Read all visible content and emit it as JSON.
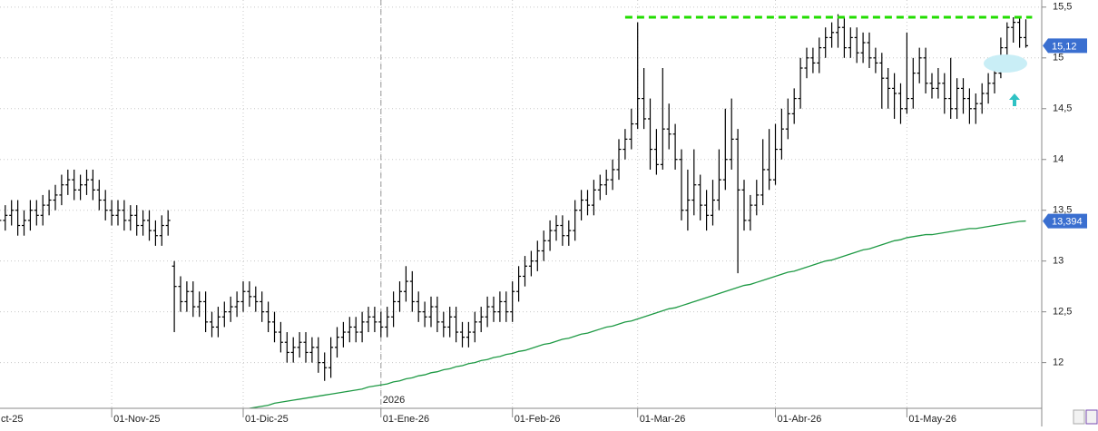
{
  "chart_data": {
    "type": "ohlc",
    "categories": [
      "ct-25",
      null,
      null,
      null,
      null,
      null,
      null,
      null,
      null,
      null,
      null,
      null,
      null,
      null,
      null,
      null,
      null,
      null,
      null,
      "01-Nov-25",
      null,
      null,
      null,
      null,
      null,
      null,
      null,
      null,
      null,
      null,
      null,
      null,
      null,
      null,
      null,
      null,
      null,
      null,
      null,
      null,
      "01-Dic-25",
      null,
      null,
      null,
      null,
      null,
      null,
      null,
      null,
      null,
      null,
      null,
      null,
      null,
      null,
      null,
      null,
      null,
      null,
      null,
      null,
      null,
      "01-Ene-26",
      null,
      null,
      null,
      null,
      null,
      null,
      null,
      null,
      null,
      null,
      null,
      null,
      null,
      null,
      null,
      null,
      null,
      null,
      null,
      null,
      "01-Feb-26",
      null,
      null,
      null,
      null,
      null,
      null,
      null,
      null,
      null,
      null,
      null,
      null,
      null,
      null,
      null,
      null,
      null,
      null,
      null,
      "01-Mar-26",
      null,
      null,
      null,
      null,
      null,
      null,
      null,
      null,
      null,
      null,
      null,
      null,
      null,
      null,
      null,
      null,
      null,
      null,
      null,
      null,
      null,
      "01-Abr-26",
      null,
      null,
      null,
      null,
      null,
      null,
      null,
      null,
      null,
      null,
      null,
      null,
      null,
      null,
      null,
      null,
      null,
      null,
      null,
      null,
      "01-May-26",
      null,
      null,
      null,
      null,
      null,
      null,
      null,
      null,
      null,
      null,
      null,
      null,
      null,
      null,
      null,
      null,
      null,
      null,
      null
    ],
    "open": [
      13.3,
      13.35,
      13.4,
      13.45,
      13.5,
      13.35,
      13.4,
      13.5,
      13.45,
      13.55,
      13.6,
      13.65,
      13.75,
      13.8,
      13.7,
      13.75,
      13.8,
      13.7,
      13.6,
      13.5,
      13.45,
      13.5,
      13.4,
      13.45,
      13.35,
      13.4,
      13.3,
      13.25,
      13.35,
      12.95,
      12.75,
      12.6,
      12.7,
      12.55,
      12.6,
      12.4,
      12.35,
      12.45,
      12.5,
      12.55,
      12.6,
      12.7,
      12.65,
      12.6,
      12.5,
      12.4,
      12.3,
      12.2,
      12.1,
      12.15,
      12.2,
      12.1,
      12.15,
      12.0,
      11.95,
      12.15,
      12.25,
      12.3,
      12.35,
      12.3,
      12.4,
      12.45,
      12.4,
      12.35,
      12.45,
      12.6,
      12.7,
      12.8,
      12.6,
      12.5,
      12.45,
      12.55,
      12.4,
      12.35,
      12.45,
      12.3,
      12.25,
      12.3,
      12.4,
      12.45,
      12.55,
      12.5,
      12.6,
      12.5,
      12.7,
      12.85,
      12.95,
      13.0,
      13.1,
      13.2,
      13.3,
      13.35,
      13.25,
      13.3,
      13.5,
      13.6,
      13.55,
      13.7,
      13.75,
      13.8,
      13.9,
      14.1,
      14.2,
      14.35,
      14.6,
      14.4,
      14.1,
      13.95,
      14.3,
      14.25,
      14.0,
      13.5,
      13.6,
      13.75,
      13.55,
      13.45,
      13.6,
      13.8,
      14.0,
      14.2,
      13.7,
      13.4,
      13.55,
      13.65,
      13.9,
      13.8,
      14.1,
      14.3,
      14.45,
      14.6,
      14.9,
      15.0,
      14.95,
      15.1,
      15.2,
      15.25,
      15.3,
      15.1,
      15.2,
      15.05,
      15.15,
      15.0,
      14.95,
      14.8,
      14.7,
      14.65,
      14.5,
      14.6,
      14.85,
      15.0,
      14.75,
      14.7,
      14.75,
      14.6,
      14.5,
      14.7,
      14.6,
      14.5,
      14.55,
      14.65,
      14.75,
      14.85,
      15.1,
      15.3,
      15.35,
      15.2
    ],
    "high": [
      13.45,
      13.5,
      13.55,
      13.6,
      13.6,
      13.5,
      13.6,
      13.6,
      13.65,
      13.7,
      13.75,
      13.85,
      13.9,
      13.9,
      13.85,
      13.9,
      13.9,
      13.8,
      13.7,
      13.6,
      13.6,
      13.6,
      13.55,
      13.55,
      13.5,
      13.5,
      13.4,
      13.45,
      13.5,
      13.0,
      12.85,
      12.8,
      12.8,
      12.7,
      12.7,
      12.5,
      12.55,
      12.6,
      12.65,
      12.7,
      12.8,
      12.8,
      12.75,
      12.7,
      12.6,
      12.5,
      12.4,
      12.3,
      12.25,
      12.3,
      12.3,
      12.25,
      12.25,
      12.1,
      12.25,
      12.35,
      12.4,
      12.45,
      12.45,
      12.5,
      12.55,
      12.55,
      12.5,
      12.55,
      12.7,
      12.8,
      12.95,
      12.9,
      12.7,
      12.6,
      12.65,
      12.65,
      12.5,
      12.55,
      12.55,
      12.4,
      12.4,
      12.5,
      12.55,
      12.65,
      12.65,
      12.7,
      12.7,
      12.8,
      12.95,
      13.05,
      13.1,
      13.2,
      13.3,
      13.4,
      13.45,
      13.45,
      13.4,
      13.6,
      13.7,
      13.7,
      13.8,
      13.85,
      13.9,
      14.0,
      14.2,
      14.3,
      14.5,
      15.35,
      14.9,
      14.6,
      14.3,
      14.9,
      14.55,
      14.35,
      14.1,
      13.9,
      14.1,
      13.85,
      13.7,
      13.8,
      14.1,
      14.5,
      14.6,
      14.3,
      13.8,
      13.65,
      13.8,
      14.2,
      14.3,
      14.35,
      14.5,
      14.6,
      14.7,
      15.0,
      15.1,
      15.1,
      15.2,
      15.3,
      15.35,
      15.43,
      15.4,
      15.3,
      15.3,
      15.25,
      15.25,
      15.1,
      15.05,
      14.9,
      14.85,
      14.75,
      15.25,
      15.0,
      15.1,
      15.1,
      14.85,
      14.9,
      14.85,
      15.0,
      14.8,
      14.8,
      14.7,
      14.65,
      14.75,
      14.85,
      14.95,
      15.2,
      15.35,
      15.4,
      15.4,
      15.38
    ],
    "low": [
      13.2,
      13.25,
      13.3,
      13.35,
      13.25,
      13.25,
      13.3,
      13.35,
      13.35,
      13.45,
      13.5,
      13.55,
      13.65,
      13.6,
      13.6,
      13.65,
      13.6,
      13.5,
      13.4,
      13.35,
      13.35,
      13.3,
      13.3,
      13.25,
      13.25,
      13.2,
      13.15,
      13.15,
      13.25,
      12.3,
      12.5,
      12.5,
      12.45,
      12.45,
      12.3,
      12.25,
      12.25,
      12.35,
      12.4,
      12.45,
      12.5,
      12.55,
      12.5,
      12.4,
      12.3,
      12.2,
      12.1,
      12.0,
      12.0,
      12.05,
      12.0,
      12.0,
      11.9,
      11.82,
      11.85,
      12.05,
      12.15,
      12.2,
      12.2,
      12.2,
      12.3,
      12.3,
      12.25,
      12.25,
      12.35,
      12.5,
      12.6,
      12.5,
      12.4,
      12.35,
      12.35,
      12.3,
      12.25,
      12.25,
      12.2,
      12.15,
      12.15,
      12.2,
      12.3,
      12.35,
      12.4,
      12.4,
      12.4,
      12.4,
      12.6,
      12.75,
      12.85,
      12.9,
      13.0,
      13.1,
      13.2,
      13.15,
      13.15,
      13.2,
      13.4,
      13.45,
      13.45,
      13.6,
      13.65,
      13.7,
      13.8,
      14.0,
      14.1,
      14.3,
      14.3,
      13.9,
      13.85,
      13.9,
      14.1,
      13.9,
      13.4,
      13.3,
      13.45,
      13.4,
      13.3,
      13.35,
      13.5,
      13.7,
      13.9,
      12.88,
      13.3,
      13.3,
      13.45,
      13.55,
      13.7,
      13.75,
      14.0,
      14.2,
      14.35,
      14.5,
      14.8,
      14.85,
      14.85,
      15.0,
      15.1,
      15.1,
      15.0,
      15.0,
      14.95,
      14.95,
      14.9,
      14.85,
      14.5,
      14.5,
      14.4,
      14.35,
      14.45,
      14.5,
      14.75,
      14.65,
      14.6,
      14.6,
      14.45,
      14.4,
      14.4,
      14.45,
      14.35,
      14.35,
      14.45,
      14.55,
      14.65,
      14.8,
      15.0,
      15.15,
      15.1,
      15.1
    ],
    "close": [
      13.35,
      13.4,
      13.45,
      13.5,
      13.35,
      13.4,
      13.5,
      13.45,
      13.55,
      13.6,
      13.65,
      13.75,
      13.8,
      13.7,
      13.75,
      13.8,
      13.7,
      13.6,
      13.5,
      13.45,
      13.5,
      13.4,
      13.45,
      13.35,
      13.4,
      13.3,
      13.25,
      13.35,
      13.4,
      12.75,
      12.6,
      12.7,
      12.55,
      12.6,
      12.4,
      12.35,
      12.45,
      12.5,
      12.55,
      12.6,
      12.7,
      12.65,
      12.6,
      12.5,
      12.4,
      12.3,
      12.2,
      12.1,
      12.15,
      12.2,
      12.1,
      12.15,
      12.0,
      11.95,
      12.15,
      12.25,
      12.3,
      12.35,
      12.3,
      12.4,
      12.45,
      12.4,
      12.35,
      12.45,
      12.6,
      12.7,
      12.8,
      12.6,
      12.5,
      12.45,
      12.55,
      12.4,
      12.35,
      12.45,
      12.3,
      12.25,
      12.3,
      12.4,
      12.45,
      12.55,
      12.5,
      12.6,
      12.5,
      12.7,
      12.85,
      12.95,
      13.0,
      13.1,
      13.2,
      13.3,
      13.35,
      13.25,
      13.3,
      13.5,
      13.6,
      13.55,
      13.7,
      13.75,
      13.8,
      13.9,
      14.1,
      14.2,
      14.35,
      14.6,
      14.4,
      14.1,
      13.95,
      14.3,
      14.25,
      14.0,
      13.5,
      13.6,
      13.75,
      13.55,
      13.45,
      13.6,
      13.8,
      14.0,
      14.2,
      13.7,
      13.4,
      13.55,
      13.65,
      13.9,
      13.8,
      14.1,
      14.3,
      14.45,
      14.6,
      14.9,
      15.0,
      14.95,
      15.1,
      15.2,
      15.25,
      15.3,
      15.1,
      15.2,
      15.05,
      15.15,
      15.0,
      14.95,
      14.8,
      14.7,
      14.65,
      14.5,
      14.6,
      14.85,
      15.0,
      14.75,
      14.7,
      14.75,
      14.6,
      14.5,
      14.7,
      14.6,
      14.5,
      14.55,
      14.65,
      14.75,
      14.85,
      15.1,
      15.3,
      15.35,
      15.2,
      15.12
    ],
    "color": "#000000",
    "last_label": "15,12",
    "label_color": "#3a6fd0",
    "overlays": [
      {
        "type": "line",
        "color": "#1f9a45",
        "last_label": "13,394",
        "values": [
          null,
          null,
          null,
          null,
          null,
          null,
          null,
          null,
          null,
          null,
          null,
          null,
          null,
          null,
          null,
          null,
          null,
          null,
          null,
          null,
          null,
          null,
          null,
          null,
          null,
          null,
          null,
          null,
          null,
          null,
          null,
          null,
          null,
          null,
          null,
          null,
          null,
          null,
          null,
          null,
          null,
          11.55,
          11.56,
          11.57,
          11.58,
          11.6,
          11.61,
          11.62,
          11.63,
          11.64,
          11.65,
          11.66,
          11.67,
          11.68,
          11.69,
          11.7,
          11.71,
          11.72,
          11.73,
          11.74,
          11.76,
          11.77,
          11.78,
          11.79,
          11.81,
          11.82,
          11.84,
          11.85,
          11.87,
          11.88,
          11.9,
          11.91,
          11.93,
          11.94,
          11.96,
          11.97,
          11.99,
          12.0,
          12.02,
          12.03,
          12.05,
          12.06,
          12.08,
          12.09,
          12.11,
          12.12,
          12.14,
          12.16,
          12.18,
          12.19,
          12.21,
          12.23,
          12.24,
          12.26,
          12.28,
          12.29,
          12.31,
          12.33,
          12.35,
          12.36,
          12.38,
          12.4,
          12.41,
          12.43,
          12.45,
          12.47,
          12.49,
          12.51,
          12.53,
          12.54,
          12.56,
          12.58,
          12.6,
          12.62,
          12.64,
          12.66,
          12.68,
          12.7,
          12.72,
          12.74,
          12.76,
          12.77,
          12.79,
          12.81,
          12.83,
          12.85,
          12.87,
          12.89,
          12.9,
          12.92,
          12.94,
          12.96,
          12.98,
          13.0,
          13.01,
          13.03,
          13.05,
          13.07,
          13.09,
          13.11,
          13.12,
          13.14,
          13.16,
          13.18,
          13.2,
          13.21,
          13.23,
          13.24,
          13.25,
          13.26,
          13.26,
          13.27,
          13.28,
          13.29,
          13.3,
          13.31,
          13.32,
          13.32,
          13.33,
          13.34,
          13.35,
          13.36,
          13.37,
          13.38,
          13.39,
          13.394
        ]
      }
    ],
    "resistance": {
      "value": 15.4,
      "start": 101,
      "color": "#22dd00"
    },
    "year_marker": {
      "label": "2026",
      "at": 62
    },
    "ylim": [
      11.55,
      15.57
    ],
    "yticks": [
      12,
      {
        "value": 12.5,
        "label": "12,5"
      },
      13,
      {
        "value": 13.5,
        "label": "13,5"
      },
      14,
      {
        "value": 14.5,
        "label": "14,5"
      },
      15,
      {
        "value": 15.5,
        "label": "15,5"
      }
    ],
    "grid": true
  }
}
